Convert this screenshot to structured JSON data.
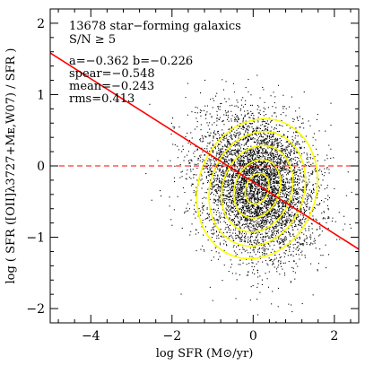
{
  "chart_data": {
    "type": "scatter",
    "xlabel": "log SFR (M⊙/yr)",
    "ylabel": "log ( SFR ([OII]λ3727+Mᴇ,W07) / SFR )",
    "xlim": [
      -5,
      2.6
    ],
    "ylim": [
      -2.2,
      2.2
    ],
    "x_ticks": [
      -4,
      -2,
      0,
      2
    ],
    "y_ticks": [
      -2,
      -1,
      0,
      1,
      2
    ],
    "x_tick_labels": [
      "−4",
      "−2",
      "0",
      "2"
    ],
    "y_tick_labels": [
      "−2",
      "−1",
      "0",
      "1",
      "2"
    ],
    "annotations": [
      "13678 star−forming galaxics",
      "S/N ≥ 5",
      "a=−0.362   b=−0.226",
      "spear=−0.548",
      "mean=−0.243",
      "rms=0.413"
    ],
    "fit_line": {
      "slope": -0.362,
      "intercept": -0.226,
      "color": "#ff0000"
    },
    "zero_line": {
      "y": 0,
      "style": "dashed",
      "color": "#ff0000"
    },
    "point_cloud": {
      "count": 13678,
      "center_x": 0.1,
      "center_y": -0.27,
      "color": "#000000"
    },
    "contour_color": "#ffff00",
    "grid": false
  }
}
